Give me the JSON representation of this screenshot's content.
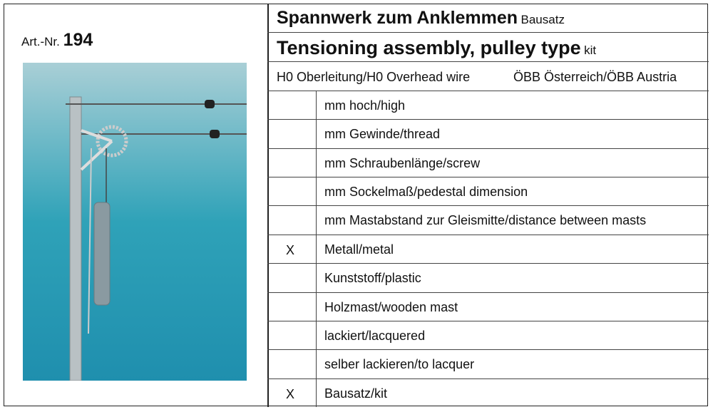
{
  "article": {
    "prefix": "Art.-Nr.",
    "number": "194"
  },
  "titles": [
    {
      "main": "Spannwerk zum Anklemmen",
      "suffix": "Bausatz"
    },
    {
      "main": "Tensioning assembly, pulley type",
      "suffix": "kit"
    }
  ],
  "header": {
    "left": "H0 Oberleitung/H0 Overhead wire",
    "right": "ÖBB Österreich/ÖBB Austria"
  },
  "rows": [
    {
      "label": "mm hoch/high"
    },
    {
      "label": "mm Gewinde/thread"
    },
    {
      "label": "mm Schraubenlänge/screw"
    },
    {
      "label": "mm Sockelmaß/pedestal dimension"
    },
    {
      "label": "mm Mastabstand zur Gleismitte/distance between masts"
    },
    {
      "mark": "X",
      "label": "Metall/metal"
    },
    {
      "label": "Kunststoff/plastic"
    },
    {
      "label": "Holzmast/wooden mast"
    },
    {
      "label": "lackiert/lacquered"
    },
    {
      "label": "selber lackieren/to lacquer"
    },
    {
      "mark": "X",
      "label": "Bausatz/kit"
    }
  ]
}
